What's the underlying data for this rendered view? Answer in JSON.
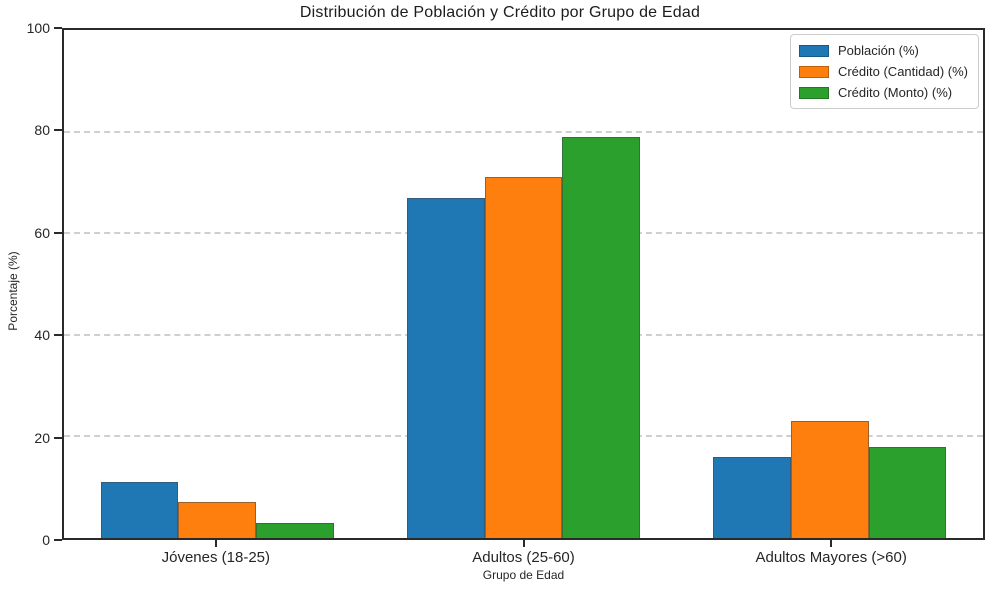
{
  "chart_data": {
    "type": "bar",
    "title": "Distribución de Población y Crédito por Grupo de Edad",
    "xlabel": "Grupo de Edad",
    "ylabel": "Porcentaje (%)",
    "categories": [
      "Jóvenes (18-25)",
      "Adultos (25-60)",
      "Adultos Mayores (>60)"
    ],
    "series": [
      {
        "name": "Población (%)",
        "color": "#1f77b4",
        "values": [
          11,
          67,
          16
        ]
      },
      {
        "name": "Crédito (Cantidad) (%)",
        "color": "#ff7f0e",
        "values": [
          7,
          71,
          23
        ]
      },
      {
        "name": "Crédito (Monto) (%)",
        "color": "#2ca02c",
        "values": [
          3,
          79,
          18
        ]
      }
    ],
    "ylim": [
      0,
      100
    ],
    "yticks": [
      0,
      20,
      40,
      60,
      80,
      100
    ],
    "grid": "horizontal-dashed",
    "legend_position": "top-right"
  }
}
